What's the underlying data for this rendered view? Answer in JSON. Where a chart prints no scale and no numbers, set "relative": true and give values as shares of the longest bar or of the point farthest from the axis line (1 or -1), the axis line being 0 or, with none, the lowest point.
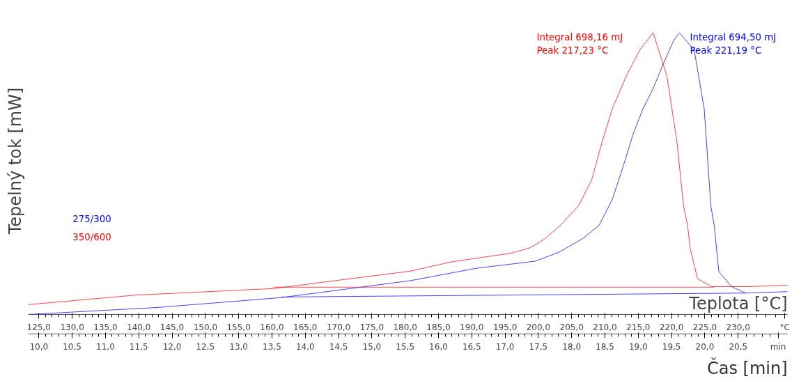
{
  "chart_data": {
    "type": "line",
    "relative": true,
    "ylabel": "Tepelný tok [mW]",
    "xlabel": "Teplota [°C]",
    "x2label": "Čas [min]",
    "xlim": [
      123.4,
      237.4
    ],
    "xticks": [
      {
        "value": 125,
        "label": "125,0"
      },
      {
        "value": 130,
        "label": "130,0"
      },
      {
        "value": 135,
        "label": "135,0"
      },
      {
        "value": 140,
        "label": "140,0"
      },
      {
        "value": 145,
        "label": "145,0"
      },
      {
        "value": 150,
        "label": "150,0"
      },
      {
        "value": 155,
        "label": "155,0"
      },
      {
        "value": 160,
        "label": "160,0"
      },
      {
        "value": 165,
        "label": "165,0"
      },
      {
        "value": 170,
        "label": "170,0"
      },
      {
        "value": 175,
        "label": "175,0"
      },
      {
        "value": 180,
        "label": "180,0"
      },
      {
        "value": 185,
        "label": "185,0"
      },
      {
        "value": 190,
        "label": "190,0"
      },
      {
        "value": 195,
        "label": "195,0"
      },
      {
        "value": 200,
        "label": "200,0"
      },
      {
        "value": 205,
        "label": "205,0"
      },
      {
        "value": 210,
        "label": "210,0"
      },
      {
        "value": 215,
        "label": "215,0"
      },
      {
        "value": 220,
        "label": "220,0"
      },
      {
        "value": 225,
        "label": "225,0"
      },
      {
        "value": 230,
        "label": "230,0"
      },
      {
        "value": 237,
        "label": "°C"
      }
    ],
    "x2lim": [
      9.84,
      21.24
    ],
    "x2ticks": [
      {
        "value": 10,
        "label": "10,0"
      },
      {
        "value": 10.5,
        "label": "10,5"
      },
      {
        "value": 11,
        "label": "11,0"
      },
      {
        "value": 11.5,
        "label": "11,5"
      },
      {
        "value": 12,
        "label": "12,0"
      },
      {
        "value": 12.5,
        "label": "12,5"
      },
      {
        "value": 13,
        "label": "13,0"
      },
      {
        "value": 13.5,
        "label": "13,5"
      },
      {
        "value": 14,
        "label": "14,0"
      },
      {
        "value": 14.5,
        "label": "14,5"
      },
      {
        "value": 15,
        "label": "15,0"
      },
      {
        "value": 15.5,
        "label": "15,5"
      },
      {
        "value": 16,
        "label": "16,0"
      },
      {
        "value": 16.5,
        "label": "16,5"
      },
      {
        "value": 17,
        "label": "17,0"
      },
      {
        "value": 17.5,
        "label": "17,5"
      },
      {
        "value": 18,
        "label": "18,0"
      },
      {
        "value": 18.5,
        "label": "18,5"
      },
      {
        "value": 19,
        "label": "19,0"
      },
      {
        "value": 19.5,
        "label": "19,5"
      },
      {
        "value": 20,
        "label": "20,0"
      },
      {
        "value": 20.5,
        "label": "20,5"
      },
      {
        "value": 21.1,
        "label": "min"
      }
    ],
    "legend": "left",
    "grid": false,
    "marker": "none",
    "line_style": "solid",
    "series": [
      {
        "name": "275/300",
        "color": "#0000ff",
        "x": [
          123.4,
          142.9,
          161.4,
          180.8,
          190.7,
          199.5,
          203.1,
          206.7,
          209.1,
          211.1,
          212.7,
          214.2,
          215.7,
          217.2,
          218.8,
          220.3,
          221.19,
          223.4,
          224.9,
          225.9,
          226.4,
          227.1,
          229.0,
          231.1,
          237.4
        ],
        "values": [
          0,
          0.025,
          0.06,
          0.12,
          0.164,
          0.189,
          0.221,
          0.27,
          0.316,
          0.408,
          0.523,
          0.638,
          0.73,
          0.8,
          0.892,
          0.972,
          1.0,
          0.938,
          0.73,
          0.385,
          0.316,
          0.152,
          0.099,
          0.076,
          0.081
        ]
      },
      {
        "name": "350/600",
        "color": "#ff0000",
        "x": [
          123.4,
          139.7,
          160.2,
          180.8,
          187.0,
          195.8,
          198.8,
          200.9,
          203.3,
          206.0,
          208.0,
          209.6,
          211.1,
          213.2,
          215.2,
          217.23,
          219.3,
          220.8,
          221.8,
          222.4,
          222.8,
          223.9,
          226.0,
          231.5,
          237.4
        ],
        "values": [
          0.035,
          0.069,
          0.092,
          0.154,
          0.187,
          0.217,
          0.237,
          0.267,
          0.316,
          0.385,
          0.477,
          0.615,
          0.73,
          0.846,
          0.938,
          1.0,
          0.846,
          0.615,
          0.385,
          0.316,
          0.233,
          0.127,
          0.099,
          0.099,
          0.104
        ]
      },
      {
        "color": "#ff0000",
        "x": [
          160.2,
          226.4
        ],
        "values": [
          0.097,
          0.097
        ]
      },
      {
        "color": "#0000ff",
        "x": [
          161.4,
          231.1
        ],
        "values": [
          0.062,
          0.076
        ]
      }
    ],
    "annotations": [
      "Integral  698,16 mJ\nPeak  217,23 °C",
      "Integral  694,50 mJ\nPeak  221,19 °C"
    ]
  }
}
